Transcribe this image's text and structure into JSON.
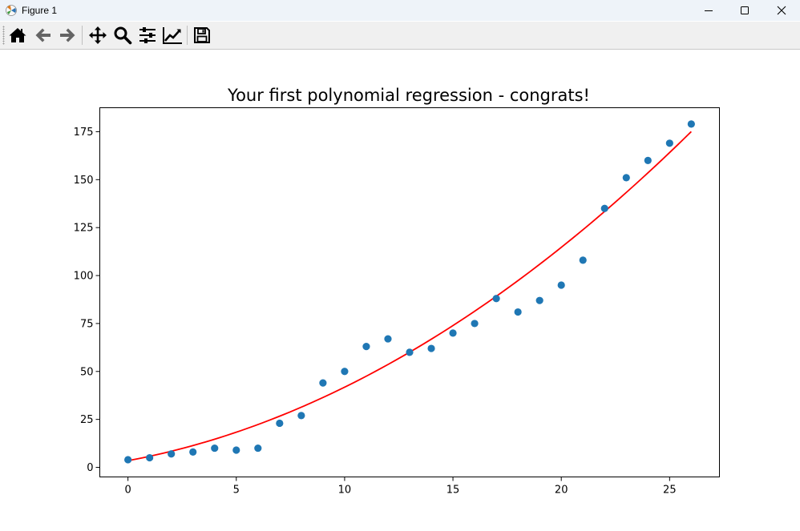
{
  "window": {
    "title": "Figure 1"
  },
  "icons": {
    "app": "matplotlib-icon",
    "minimize": "minimize-icon",
    "maximize": "maximize-icon",
    "close": "close-icon",
    "home": "home-icon",
    "back": "arrow-left-icon",
    "forward": "arrow-right-icon",
    "pan": "move-icon",
    "zoom": "magnifier-icon",
    "subplots": "sliders-icon",
    "edit": "line-chart-icon",
    "save": "floppy-disk-icon"
  },
  "chart_data": {
    "type": "scatter",
    "title": "Your first polynomial regression - congrats!",
    "xlabel": "",
    "ylabel": "",
    "xlim": [
      -1.3,
      27.3
    ],
    "ylim": [
      -5.0,
      187.5
    ],
    "xticks": [
      0,
      5,
      10,
      15,
      20,
      25
    ],
    "yticks": [
      0,
      25,
      50,
      75,
      100,
      125,
      150,
      175
    ],
    "grid": false,
    "series": [
      {
        "kind": "scatter",
        "color": "#1f77b4",
        "x": [
          0,
          1,
          2,
          3,
          4,
          5,
          6,
          7,
          8,
          9,
          10,
          11,
          12,
          13,
          14,
          15,
          16,
          17,
          18,
          19,
          20,
          21,
          22,
          23,
          24,
          25,
          26
        ],
        "y": [
          4,
          5,
          7,
          8,
          10,
          9,
          10,
          23,
          27,
          44,
          50,
          63,
          67,
          60,
          62,
          70,
          75,
          88,
          81,
          87,
          95,
          108,
          135,
          151,
          160,
          169,
          179
        ]
      },
      {
        "kind": "line",
        "color": "#ff0000",
        "polynomial": [
          3.5,
          2.1,
          0.173
        ],
        "x_range": [
          0,
          26
        ]
      }
    ]
  }
}
